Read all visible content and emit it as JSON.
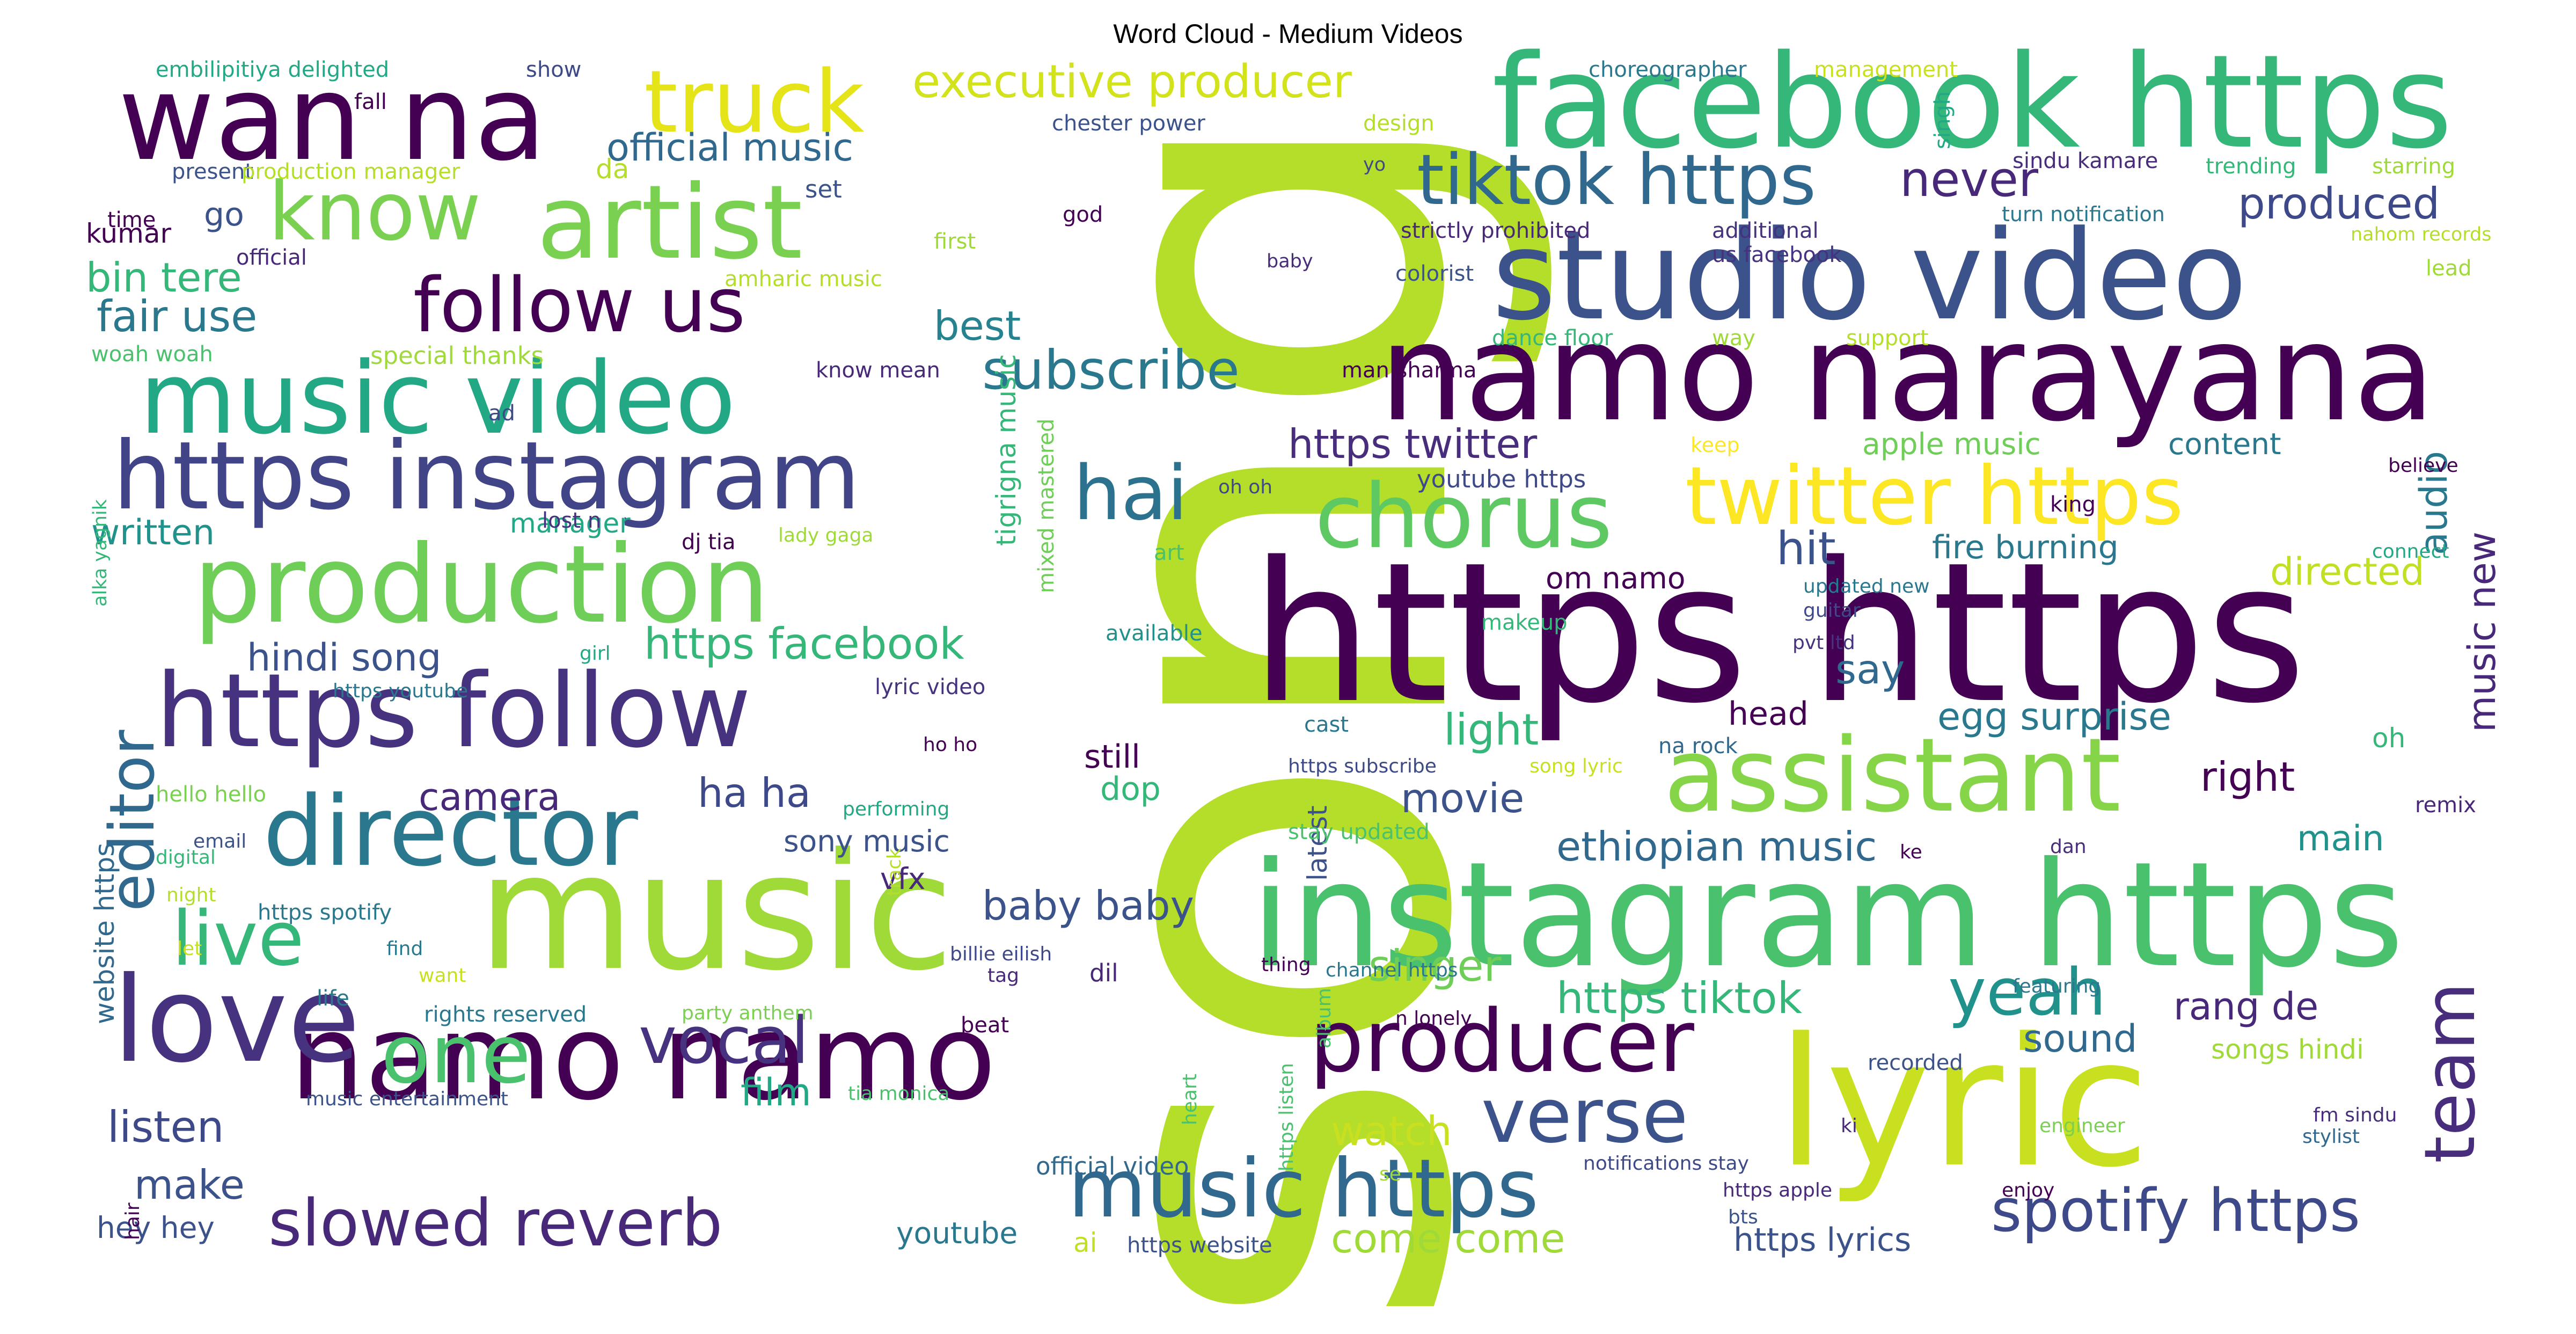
{
  "title": "Word Cloud - Medium Videos",
  "palette": {
    "dark": "#440154",
    "indigo": "#46327e",
    "blue": "#365c8d",
    "teal": "#277f8e",
    "green": "#1fa187",
    "lime": "#4ac16d",
    "yellowgreen": "#a0da39",
    "yellow": "#fde725"
  },
  "words": [
    {
      "text": "song",
      "color": "#b5de2b"
    },
    {
      "text": "https https",
      "color": "#440154"
    },
    {
      "text": "instagram https",
      "color": "#4ac16d"
    },
    {
      "text": "lyric",
      "color": "#c8e020"
    },
    {
      "text": "namo narayana",
      "color": "#440154"
    },
    {
      "text": "facebook https",
      "color": "#35b779"
    },
    {
      "text": "studio video",
      "color": "#3b528b"
    },
    {
      "text": "music",
      "color": "#a0da39"
    },
    {
      "text": "wan na",
      "color": "#440154"
    },
    {
      "text": "namo namo",
      "color": "#440154"
    },
    {
      "text": "love",
      "color": "#46327e"
    },
    {
      "text": "music video",
      "color": "#22a884"
    },
    {
      "text": "https instagram",
      "color": "#414487"
    },
    {
      "text": "production",
      "color": "#6ece58"
    },
    {
      "text": "https follow",
      "color": "#46327e"
    },
    {
      "text": "director",
      "color": "#2a788e"
    },
    {
      "text": "artist",
      "color": "#7ad151"
    },
    {
      "text": "assistant",
      "color": "#86d549"
    },
    {
      "text": "truck",
      "color": "#e5e419"
    },
    {
      "text": "chorus",
      "color": "#5ec962"
    },
    {
      "text": "twitter https",
      "color": "#fde725"
    },
    {
      "text": "producer",
      "color": "#440154"
    },
    {
      "text": "music https",
      "color": "#31688e"
    },
    {
      "text": "follow us",
      "color": "#440154"
    },
    {
      "text": "tiktok https",
      "color": "#31688e"
    },
    {
      "text": "know",
      "color": "#7ad151"
    },
    {
      "text": "executive producer",
      "color": "#d2e21b"
    },
    {
      "text": "slowed reverb",
      "color": "#482878"
    },
    {
      "text": "verse",
      "color": "#3b528b"
    },
    {
      "text": "spotify https",
      "color": "#3e4989"
    },
    {
      "text": "hai",
      "color": "#2c728e"
    },
    {
      "text": "one",
      "color": "#4ac16d"
    },
    {
      "text": "vocal",
      "color": "#46327e"
    },
    {
      "text": "live",
      "color": "#35b779"
    },
    {
      "text": "yeah",
      "color": "#21918c"
    },
    {
      "text": "team",
      "color": "#472d7b"
    },
    {
      "text": "editor",
      "color": "#31688e"
    },
    {
      "text": "subscribe",
      "color": "#2a788e"
    },
    {
      "text": "official music",
      "color": "#31688e"
    },
    {
      "text": "never",
      "color": "#482878"
    },
    {
      "text": "produced",
      "color": "#3e4989"
    },
    {
      "text": "bin tere",
      "color": "#35b779"
    },
    {
      "text": "fair use",
      "color": "#2a788e"
    },
    {
      "text": "best",
      "color": "#26828e"
    },
    {
      "text": "https twitter",
      "color": "#472d7b"
    },
    {
      "text": "audio",
      "color": "#2a788e"
    },
    {
      "text": "music new",
      "color": "#482878"
    },
    {
      "text": "written",
      "color": "#21918c"
    },
    {
      "text": "hindi song",
      "color": "#3b528b"
    },
    {
      "text": "https facebook",
      "color": "#35b779"
    },
    {
      "text": "hit",
      "color": "#3b528b"
    },
    {
      "text": "directed",
      "color": "#c2df23"
    },
    {
      "text": "say",
      "color": "#31688e"
    },
    {
      "text": "egg surprise",
      "color": "#2a788e"
    },
    {
      "text": "camera",
      "color": "#482878"
    },
    {
      "text": "ha ha",
      "color": "#3e4989"
    },
    {
      "text": "movie",
      "color": "#3b528b"
    },
    {
      "text": "right",
      "color": "#440154"
    },
    {
      "text": "ethiopian music",
      "color": "#31688e"
    },
    {
      "text": "main",
      "color": "#21918c"
    },
    {
      "text": "baby baby",
      "color": "#3b528b"
    },
    {
      "text": "singer",
      "color": "#6ece58"
    },
    {
      "text": "https tiktok",
      "color": "#35b779"
    },
    {
      "text": "rang de",
      "color": "#482878"
    },
    {
      "text": "sound",
      "color": "#31688e"
    },
    {
      "text": "listen",
      "color": "#3e4989"
    },
    {
      "text": "make",
      "color": "#3b528b"
    },
    {
      "text": "hey hey",
      "color": "#3b528b"
    },
    {
      "text": "film",
      "color": "#22a884"
    },
    {
      "text": "watch",
      "color": "#c8e020"
    },
    {
      "text": "come come",
      "color": "#a0da39"
    },
    {
      "text": "https lyrics",
      "color": "#3b528b"
    },
    {
      "text": "youtube",
      "color": "#2a788e"
    },
    {
      "text": "light",
      "color": "#35b779"
    },
    {
      "text": "head",
      "color": "#440154"
    },
    {
      "text": "still",
      "color": "#440154"
    },
    {
      "text": "dop",
      "color": "#35b779"
    },
    {
      "text": "sony music",
      "color": "#3b528b"
    },
    {
      "text": "vfx",
      "color": "#482878"
    },
    {
      "text": "go",
      "color": "#3b528b"
    },
    {
      "text": "kumar",
      "color": "#440154"
    },
    {
      "text": "manager",
      "color": "#22a884"
    },
    {
      "text": "om namo",
      "color": "#440154"
    },
    {
      "text": "fire burning",
      "color": "#2a788e"
    },
    {
      "text": "apple music",
      "color": "#6ece58"
    },
    {
      "text": "content",
      "color": "#2a788e"
    },
    {
      "text": "youtube https",
      "color": "#3e4989"
    },
    {
      "text": "https website",
      "color": "#3b528b"
    },
    {
      "text": "ai",
      "color": "#c2df23"
    },
    {
      "text": "official video",
      "color": "#31688e"
    },
    {
      "text": "oh",
      "color": "#35b779"
    },
    {
      "text": "songs hindi",
      "color": "#a0da39"
    },
    {
      "text": "latest",
      "color": "#3b528b"
    },
    {
      "text": "website https",
      "color": "#31688e"
    },
    {
      "text": "tigrigna music",
      "color": "#35b779"
    },
    {
      "text": "mixed mastered",
      "color": "#6ece58"
    },
    {
      "text": "embilipitiya delighted",
      "color": "#22a884"
    },
    {
      "text": "show",
      "color": "#3e4989"
    },
    {
      "text": "fall",
      "color": "#440154"
    },
    {
      "text": "da",
      "color": "#b5de2b"
    },
    {
      "text": "present",
      "color": "#3b528b"
    },
    {
      "text": "production manager",
      "color": "#b5de2b"
    },
    {
      "text": "time",
      "color": "#440154"
    },
    {
      "text": "official",
      "color": "#482878"
    },
    {
      "text": "amharic music",
      "color": "#b5de2b"
    },
    {
      "text": "first",
      "color": "#a0da39"
    },
    {
      "text": "set",
      "color": "#3b528b"
    },
    {
      "text": "chester power",
      "color": "#3b528b"
    },
    {
      "text": "design",
      "color": "#b5de2b"
    },
    {
      "text": "yo",
      "color": "#3e4989"
    },
    {
      "text": "god",
      "color": "#440154"
    },
    {
      "text": "baby",
      "color": "#472d7b"
    },
    {
      "text": "choreographer",
      "color": "#2a788e"
    },
    {
      "text": "management",
      "color": "#c8e020"
    },
    {
      "text": "singh",
      "color": "#22a884"
    },
    {
      "text": "sindu kamare",
      "color": "#472d7b"
    },
    {
      "text": "trending",
      "color": "#35b779"
    },
    {
      "text": "starring",
      "color": "#a0da39"
    },
    {
      "text": "turn notification",
      "color": "#2a788e"
    },
    {
      "text": "nahom records",
      "color": "#b5de2b"
    },
    {
      "text": "strictly prohibited",
      "color": "#482878"
    },
    {
      "text": "additional",
      "color": "#46327e"
    },
    {
      "text": "us facebook",
      "color": "#46327e"
    },
    {
      "text": "colorist",
      "color": "#3b528b"
    },
    {
      "text": "lead",
      "color": "#a0da39"
    },
    {
      "text": "special thanks",
      "color": "#a0da39"
    },
    {
      "text": "woah woah",
      "color": "#4ac16d"
    },
    {
      "text": "know mean",
      "color": "#482878"
    },
    {
      "text": "man sharma",
      "color": "#440154"
    },
    {
      "text": "dance floor",
      "color": "#35b779"
    },
    {
      "text": "way",
      "color": "#a0da39"
    },
    {
      "text": "support",
      "color": "#b5de2b"
    },
    {
      "text": "ad",
      "color": "#3e4989"
    },
    {
      "text": "keep",
      "color": "#fde725"
    },
    {
      "text": "believe",
      "color": "#440154"
    },
    {
      "text": "alka yagnik",
      "color": "#35b779"
    },
    {
      "text": "lost n",
      "color": "#46327e"
    },
    {
      "text": "dj tia",
      "color": "#440154"
    },
    {
      "text": "lady gaga",
      "color": "#a0da39"
    },
    {
      "text": "oh oh",
      "color": "#3e4989"
    },
    {
      "text": "art",
      "color": "#4ac16d"
    },
    {
      "text": "king",
      "color": "#440154"
    },
    {
      "text": "connect",
      "color": "#22a884"
    },
    {
      "text": "makeup",
      "color": "#35b779"
    },
    {
      "text": "updated new",
      "color": "#2a788e"
    },
    {
      "text": "track",
      "color": "#b5de2b"
    },
    {
      "text": "available",
      "color": "#21918c"
    },
    {
      "text": "guitar",
      "color": "#3e4989"
    },
    {
      "text": "pvt ltd",
      "color": "#46327e"
    },
    {
      "text": "girl",
      "color": "#22a884"
    },
    {
      "text": "https youtube",
      "color": "#2a788e"
    },
    {
      "text": "lyric video",
      "color": "#46327e"
    },
    {
      "text": "cast",
      "color": "#2a788e"
    },
    {
      "text": "na rock",
      "color": "#31688e"
    },
    {
      "text": "https subscribe",
      "color": "#3e4989"
    },
    {
      "text": "song lyric",
      "color": "#c8e020"
    },
    {
      "text": "ho ho",
      "color": "#440154"
    },
    {
      "text": "performing",
      "color": "#22a884"
    },
    {
      "text": "hello hello",
      "color": "#7ad151"
    },
    {
      "text": "email",
      "color": "#3b528b"
    },
    {
      "text": "digital",
      "color": "#35b779"
    },
    {
      "text": "stay updated",
      "color": "#4ac16d"
    },
    {
      "text": "ke",
      "color": "#440154"
    },
    {
      "text": "dan",
      "color": "#472d7b"
    },
    {
      "text": "remix",
      "color": "#482878"
    },
    {
      "text": "night",
      "color": "#b5de2b"
    },
    {
      "text": "https spotify",
      "color": "#2a788e"
    },
    {
      "text": "find",
      "color": "#2a788e"
    },
    {
      "text": "billie eilish",
      "color": "#3e4989"
    },
    {
      "text": "tag",
      "color": "#482878"
    },
    {
      "text": "dil",
      "color": "#482878"
    },
    {
      "text": "thing",
      "color": "#440154"
    },
    {
      "text": "album",
      "color": "#4ac16d"
    },
    {
      "text": "channel https",
      "color": "#2a788e"
    },
    {
      "text": "let",
      "color": "#c8e020"
    },
    {
      "text": "life",
      "color": "#2a788e"
    },
    {
      "text": "want",
      "color": "#c8e020"
    },
    {
      "text": "rights reserved",
      "color": "#2a788e"
    },
    {
      "text": "party anthem",
      "color": "#7ad151"
    },
    {
      "text": "featuring",
      "color": "#2a788e"
    },
    {
      "text": "n lonely",
      "color": "#440154"
    },
    {
      "text": "beat",
      "color": "#440154"
    },
    {
      "text": "https listen",
      "color": "#4ac16d"
    },
    {
      "text": "recorded",
      "color": "#3b528b"
    },
    {
      "text": "music entertainment",
      "color": "#3b528b"
    },
    {
      "text": "tia monica",
      "color": "#4ac16d"
    },
    {
      "text": "heart",
      "color": "#4ac16d"
    },
    {
      "text": "ki",
      "color": "#482878"
    },
    {
      "text": "fm sindu",
      "color": "#472d7b"
    },
    {
      "text": "engineer",
      "color": "#7ad151"
    },
    {
      "text": "stylist",
      "color": "#31688e"
    },
    {
      "text": "hair",
      "color": "#440154"
    },
    {
      "text": "se",
      "color": "#a0da39"
    },
    {
      "text": "notifications stay",
      "color": "#3e4989"
    },
    {
      "text": "enjoy",
      "color": "#440154"
    },
    {
      "text": "https apple",
      "color": "#482878"
    },
    {
      "text": "bts",
      "color": "#3b528b"
    }
  ]
}
